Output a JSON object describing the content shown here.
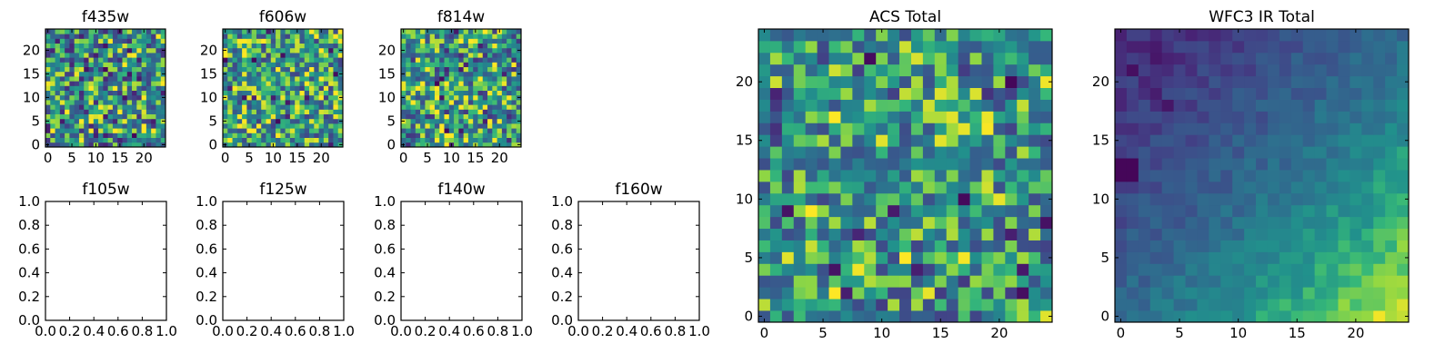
{
  "figure": {
    "background": "#ffffff",
    "colormap": "viridis"
  },
  "chart_data": [
    {
      "id": "f435w",
      "type": "heatmap",
      "title": "f435w",
      "grid_size": 25,
      "xlim": [
        0,
        25
      ],
      "ylim": [
        0,
        25
      ],
      "xticks": [
        0,
        5,
        10,
        15,
        20
      ],
      "yticks": [
        0,
        5,
        10,
        15,
        20
      ],
      "values_style": "noise",
      "seed": 11,
      "mean": 0.58,
      "spread": 0.42,
      "gradient": null
    },
    {
      "id": "f606w",
      "type": "heatmap",
      "title": "f606w",
      "grid_size": 25,
      "xlim": [
        0,
        25
      ],
      "ylim": [
        0,
        25
      ],
      "xticks": [
        0,
        5,
        10,
        15,
        20
      ],
      "yticks": [
        0,
        5,
        10,
        15,
        20
      ],
      "values_style": "noise",
      "seed": 23,
      "mean": 0.66,
      "spread": 0.38,
      "gradient": null
    },
    {
      "id": "f814w",
      "type": "heatmap",
      "title": "f814w",
      "grid_size": 25,
      "xlim": [
        0,
        25
      ],
      "ylim": [
        0,
        25
      ],
      "xticks": [
        0,
        5,
        10,
        15,
        20
      ],
      "yticks": [
        0,
        5,
        10,
        15,
        20
      ],
      "values_style": "noise",
      "seed": 37,
      "mean": 0.62,
      "spread": 0.4,
      "gradient": null
    },
    {
      "id": "f105w",
      "type": "empty",
      "title": "f105w",
      "xlim": [
        0,
        1
      ],
      "ylim": [
        0,
        1
      ],
      "xticks": [
        0.0,
        0.2,
        0.4,
        0.6,
        0.8,
        1.0
      ],
      "yticks": [
        0.0,
        0.2,
        0.4,
        0.6,
        0.8,
        1.0
      ]
    },
    {
      "id": "f125w",
      "type": "empty",
      "title": "f125w",
      "xlim": [
        0,
        1
      ],
      "ylim": [
        0,
        1
      ],
      "xticks": [
        0.0,
        0.2,
        0.4,
        0.6,
        0.8,
        1.0
      ],
      "yticks": [
        0.0,
        0.2,
        0.4,
        0.6,
        0.8,
        1.0
      ]
    },
    {
      "id": "f140w",
      "type": "empty",
      "title": "f140w",
      "xlim": [
        0,
        1
      ],
      "ylim": [
        0,
        1
      ],
      "xticks": [
        0.0,
        0.2,
        0.4,
        0.6,
        0.8,
        1.0
      ],
      "yticks": [
        0.0,
        0.2,
        0.4,
        0.6,
        0.8,
        1.0
      ]
    },
    {
      "id": "f160w",
      "type": "empty",
      "title": "f160w",
      "xlim": [
        0,
        1
      ],
      "ylim": [
        0,
        1
      ],
      "xticks": [
        0.0,
        0.2,
        0.4,
        0.6,
        0.8,
        1.0
      ],
      "yticks": [
        0.0,
        0.2,
        0.4,
        0.6,
        0.8,
        1.0
      ]
    },
    {
      "id": "acs_total",
      "type": "heatmap",
      "title": "ACS Total",
      "grid_size": 25,
      "xlim": [
        0,
        25
      ],
      "ylim": [
        0,
        25
      ],
      "xticks": [
        0,
        5,
        10,
        15,
        20
      ],
      "yticks": [
        0,
        5,
        10,
        15,
        20
      ],
      "values_style": "noise",
      "seed": 53,
      "mean": 0.6,
      "spread": 0.36,
      "gradient": null
    },
    {
      "id": "wfc3_ir_total",
      "type": "heatmap",
      "title": "WFC3 IR Total",
      "grid_size": 25,
      "xlim": [
        0,
        25
      ],
      "ylim": [
        0,
        25
      ],
      "xticks": [
        0,
        5,
        10,
        15,
        20
      ],
      "yticks": [
        0,
        5,
        10,
        15,
        20
      ],
      "values_style": "gradient",
      "seed": 71,
      "mean": 0.45,
      "spread": 0.08,
      "gradient": {
        "low_corner": "top-left",
        "high_corner": "bottom-right",
        "min": 0.0,
        "max": 1.0
      }
    }
  ]
}
